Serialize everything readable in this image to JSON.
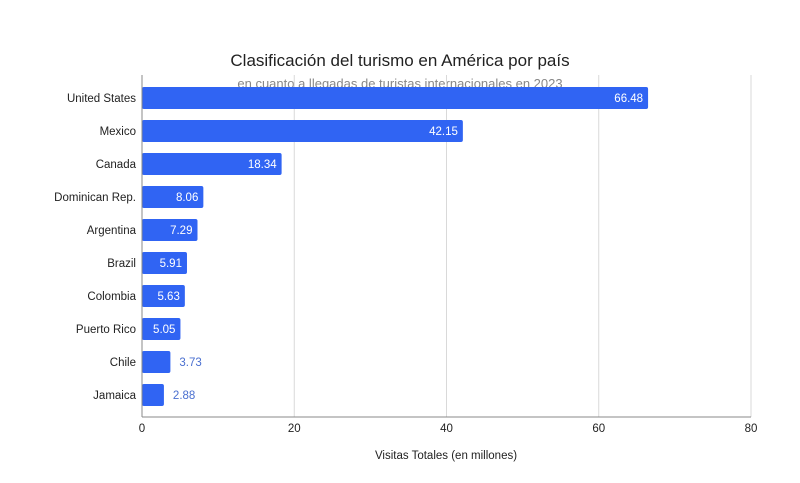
{
  "chart_data": {
    "type": "bar",
    "orientation": "horizontal",
    "title": "Clasificación del turismo en América por país",
    "subtitle": "en cuanto a llegadas de turistas internacionales en 2023",
    "xlabel": "Visitas Totales (en millones)",
    "ylabel": "",
    "categories": [
      "United States",
      "Mexico",
      "Canada",
      "Dominican Rep.",
      "Argentina",
      "Brazil",
      "Colombia",
      "Puerto Rico",
      "Chile",
      "Jamaica"
    ],
    "values": [
      66.48,
      42.15,
      18.34,
      8.06,
      7.29,
      5.91,
      5.63,
      5.05,
      3.73,
      2.88
    ],
    "data_labels": [
      "66.48",
      "42.15",
      "18.34",
      "8.06",
      "7.29",
      "5.91",
      "5.63",
      "5.05",
      "3.73",
      "2.88"
    ],
    "xlim": [
      0,
      80
    ],
    "xticks": [
      "0",
      "20",
      "40",
      "60",
      "80"
    ],
    "grid": "vertical",
    "legend": "none",
    "colors": {
      "bar": "#3064f3",
      "label_inside": "#ffffff",
      "label_outside": "#4a6fd0",
      "grid": "#d9d9d9",
      "axis": "#888888"
    }
  }
}
